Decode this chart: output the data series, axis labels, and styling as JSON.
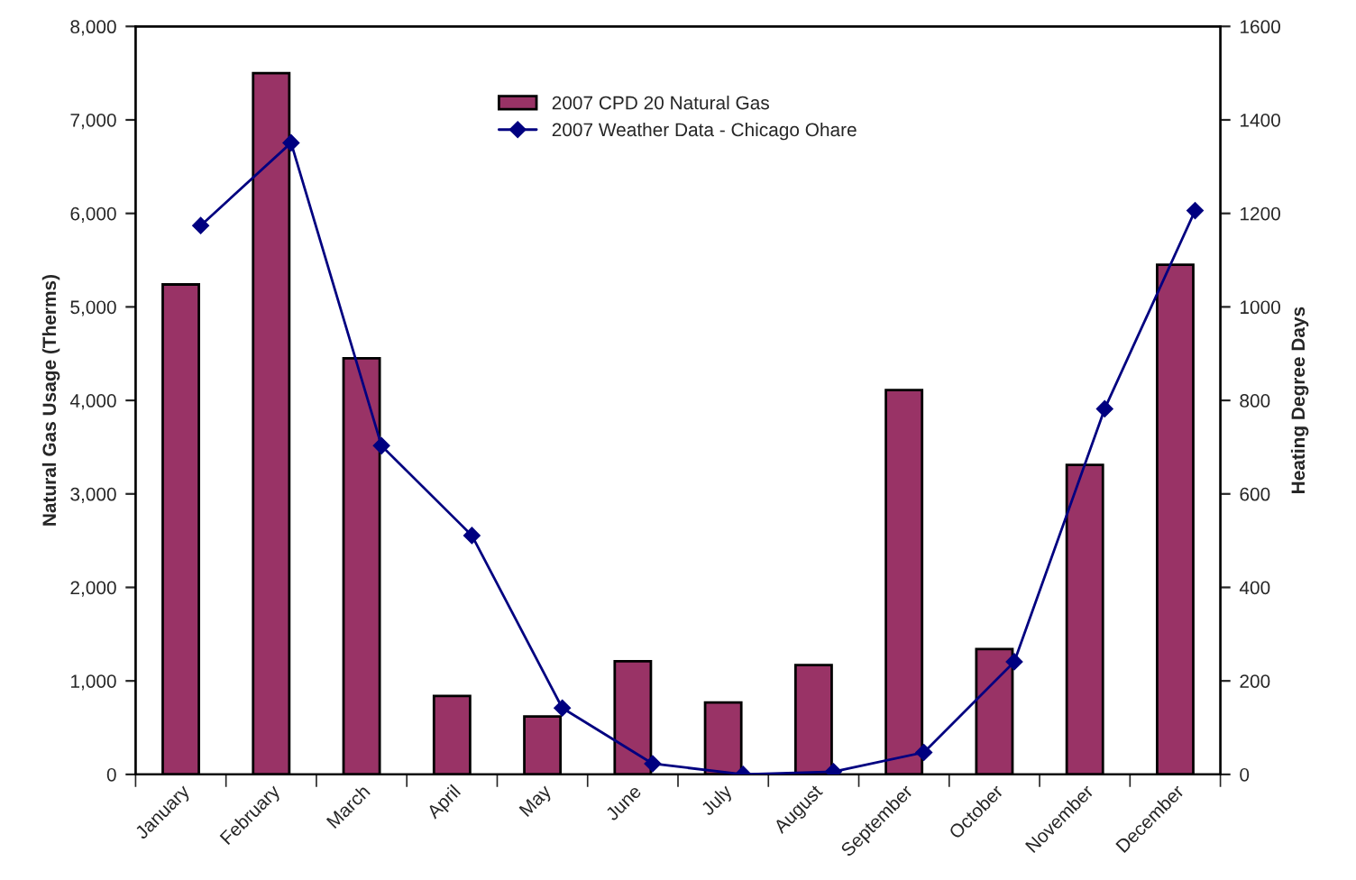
{
  "chart_data": {
    "type": "bar",
    "categories": [
      "January",
      "February",
      "March",
      "April",
      "May",
      "June",
      "July",
      "August",
      "September",
      "October",
      "November",
      "December"
    ],
    "series": [
      {
        "name": "2007 CPD 20 Natural Gas",
        "color": "#993366",
        "values": [
          5240,
          7500,
          4450,
          840,
          620,
          1210,
          770,
          1170,
          4110,
          1340,
          3310,
          5450
        ]
      },
      {
        "name": "2007 Weather Data - Chicago Ohare",
        "type": "line",
        "axis": "y2",
        "color": "#000080",
        "marker": "diamond",
        "values": [
          1174,
          1351,
          703,
          511,
          142,
          23,
          0,
          6,
          47,
          241,
          782,
          1206
        ]
      }
    ],
    "ylabel": "Natural Gas Usage (Therms)",
    "y2label": "Heating Degree Days",
    "ylim": [
      0,
      8000
    ],
    "yticks": [
      {
        "value": 0,
        "label": "0"
      },
      {
        "value": 1000,
        "label": "1,000"
      },
      {
        "value": 2000,
        "label": "2,000"
      },
      {
        "value": 3000,
        "label": "3,000"
      },
      {
        "value": 4000,
        "label": "4,000"
      },
      {
        "value": 5000,
        "label": "5,000"
      },
      {
        "value": 6000,
        "label": "6,000"
      },
      {
        "value": 7000,
        "label": "7,000"
      },
      {
        "value": 8000,
        "label": "8,000"
      }
    ],
    "y2lim": [
      0,
      1600
    ],
    "y2ticks": [
      0,
      200,
      400,
      600,
      800,
      1000,
      1200,
      1400,
      1600
    ],
    "legend": "top",
    "grid": false
  }
}
